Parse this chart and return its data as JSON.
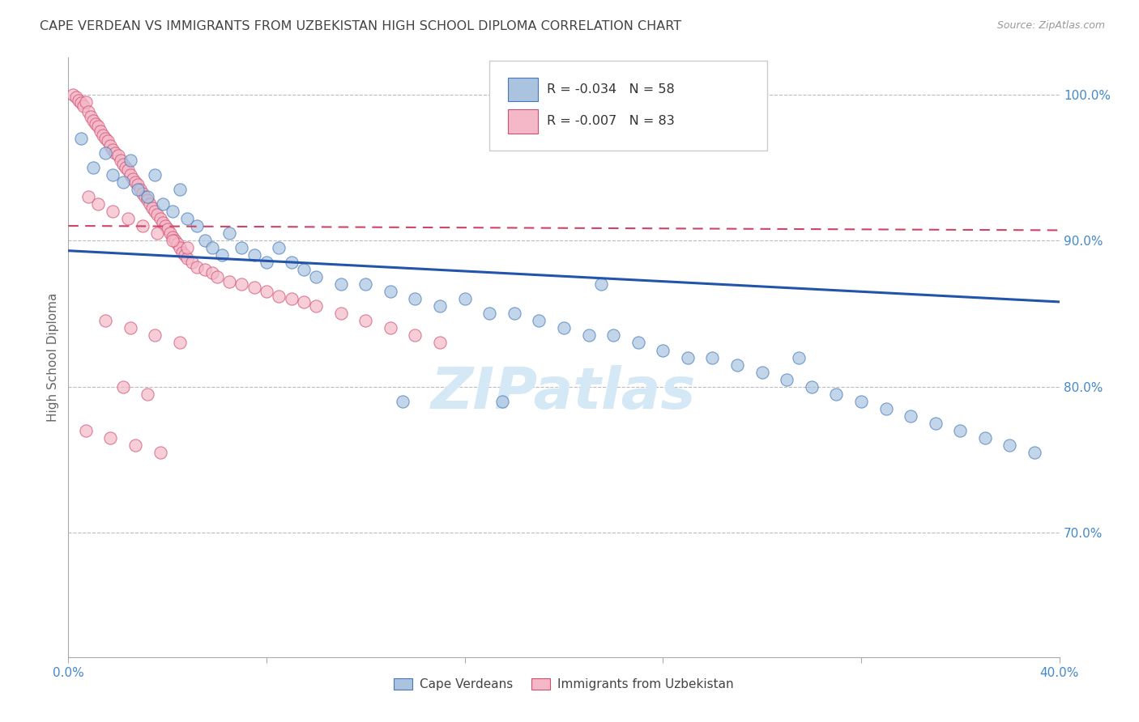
{
  "title": "CAPE VERDEAN VS IMMIGRANTS FROM UZBEKISTAN HIGH SCHOOL DIPLOMA CORRELATION CHART",
  "source": "Source: ZipAtlas.com",
  "ylabel": "High School Diploma",
  "xlim": [
    0.0,
    0.4
  ],
  "ylim": [
    0.615,
    1.025
  ],
  "yticks_right": [
    1.0,
    0.9,
    0.8,
    0.7
  ],
  "xticks": [
    0.0,
    0.08,
    0.16,
    0.24,
    0.32,
    0.4
  ],
  "legend_r_blue": "R = -0.034",
  "legend_n_blue": "N = 58",
  "legend_r_pink": "R = -0.007",
  "legend_n_pink": "N = 83",
  "blue_scatter_x": [
    0.005,
    0.01,
    0.015,
    0.018,
    0.022,
    0.025,
    0.028,
    0.032,
    0.035,
    0.038,
    0.042,
    0.045,
    0.048,
    0.052,
    0.055,
    0.058,
    0.062,
    0.065,
    0.07,
    0.075,
    0.08,
    0.085,
    0.09,
    0.095,
    0.1,
    0.11,
    0.12,
    0.13,
    0.14,
    0.15,
    0.16,
    0.17,
    0.18,
    0.19,
    0.2,
    0.21,
    0.22,
    0.23,
    0.24,
    0.25,
    0.26,
    0.27,
    0.28,
    0.29,
    0.3,
    0.31,
    0.32,
    0.33,
    0.34,
    0.35,
    0.36,
    0.37,
    0.38,
    0.39,
    0.295,
    0.215,
    0.175,
    0.135
  ],
  "blue_scatter_y": [
    0.97,
    0.95,
    0.96,
    0.945,
    0.94,
    0.955,
    0.935,
    0.93,
    0.945,
    0.925,
    0.92,
    0.935,
    0.915,
    0.91,
    0.9,
    0.895,
    0.89,
    0.905,
    0.895,
    0.89,
    0.885,
    0.895,
    0.885,
    0.88,
    0.875,
    0.87,
    0.87,
    0.865,
    0.86,
    0.855,
    0.86,
    0.85,
    0.85,
    0.845,
    0.84,
    0.835,
    0.835,
    0.83,
    0.825,
    0.82,
    0.82,
    0.815,
    0.81,
    0.805,
    0.8,
    0.795,
    0.79,
    0.785,
    0.78,
    0.775,
    0.77,
    0.765,
    0.76,
    0.755,
    0.82,
    0.87,
    0.79,
    0.79
  ],
  "pink_scatter_x": [
    0.002,
    0.003,
    0.004,
    0.005,
    0.006,
    0.007,
    0.008,
    0.009,
    0.01,
    0.011,
    0.012,
    0.013,
    0.014,
    0.015,
    0.016,
    0.017,
    0.018,
    0.019,
    0.02,
    0.021,
    0.022,
    0.023,
    0.024,
    0.025,
    0.026,
    0.027,
    0.028,
    0.029,
    0.03,
    0.031,
    0.032,
    0.033,
    0.034,
    0.035,
    0.036,
    0.037,
    0.038,
    0.039,
    0.04,
    0.041,
    0.042,
    0.043,
    0.044,
    0.045,
    0.046,
    0.047,
    0.048,
    0.05,
    0.052,
    0.055,
    0.058,
    0.06,
    0.065,
    0.07,
    0.075,
    0.08,
    0.085,
    0.09,
    0.095,
    0.1,
    0.11,
    0.12,
    0.13,
    0.14,
    0.15,
    0.008,
    0.012,
    0.018,
    0.024,
    0.03,
    0.036,
    0.042,
    0.048,
    0.015,
    0.025,
    0.035,
    0.045,
    0.022,
    0.032,
    0.007,
    0.017,
    0.027,
    0.037
  ],
  "pink_scatter_y": [
    1.0,
    0.998,
    0.996,
    0.994,
    0.992,
    0.995,
    0.988,
    0.985,
    0.982,
    0.98,
    0.978,
    0.975,
    0.972,
    0.97,
    0.968,
    0.965,
    0.962,
    0.96,
    0.958,
    0.955,
    0.952,
    0.95,
    0.948,
    0.945,
    0.942,
    0.94,
    0.938,
    0.935,
    0.932,
    0.93,
    0.928,
    0.925,
    0.922,
    0.92,
    0.918,
    0.915,
    0.912,
    0.91,
    0.908,
    0.905,
    0.902,
    0.9,
    0.898,
    0.895,
    0.892,
    0.89,
    0.888,
    0.885,
    0.882,
    0.88,
    0.878,
    0.875,
    0.872,
    0.87,
    0.868,
    0.865,
    0.862,
    0.86,
    0.858,
    0.855,
    0.85,
    0.845,
    0.84,
    0.835,
    0.83,
    0.93,
    0.925,
    0.92,
    0.915,
    0.91,
    0.905,
    0.9,
    0.895,
    0.845,
    0.84,
    0.835,
    0.83,
    0.8,
    0.795,
    0.77,
    0.765,
    0.76,
    0.755
  ],
  "blue_line_x": [
    0.0,
    0.4
  ],
  "blue_line_y": [
    0.893,
    0.858
  ],
  "pink_line_x": [
    0.0,
    0.4
  ],
  "pink_line_y": [
    0.91,
    0.907
  ],
  "blue_dot_color": "#aac4e0",
  "blue_edge_color": "#4477bb",
  "pink_dot_color": "#f5b8c8",
  "pink_edge_color": "#d05070",
  "blue_line_color": "#2255aa",
  "pink_line_color": "#cc4466",
  "watermark_color": "#d5e8f5",
  "grid_color": "#bbbbbb",
  "right_axis_color": "#4488cc",
  "bottom_axis_color": "#4488cc",
  "title_color": "#444444",
  "label_color": "#666666"
}
